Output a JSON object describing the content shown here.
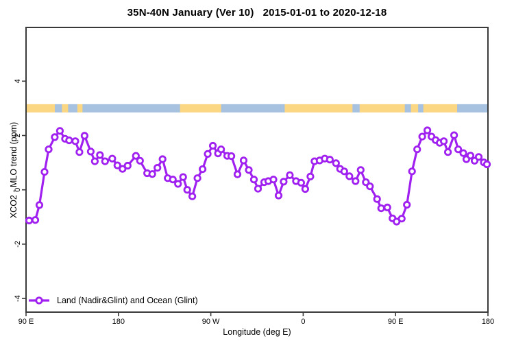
{
  "title": "35N-40N January (Ver 10)   2015-01-01 to 2020-12-18",
  "chart_data": {
    "type": "line",
    "title": "35N-40N January (Ver 10)   2015-01-01 to 2020-12-18",
    "xlabel": "Longitude (deg E)",
    "ylabel": "XCO2 - MLO trend (ppm)",
    "x_axis": {
      "domain_deg": [
        0,
        450
      ],
      "note_visible_ticks_wrap_longitude": "axis starts at 90E and wraps 450 degrees eastward",
      "ticks": [
        {
          "deg": 0,
          "label": "90 E"
        },
        {
          "deg": 90,
          "label": "180"
        },
        {
          "deg": 180,
          "label": "90 W"
        },
        {
          "deg": 270,
          "label": "0"
        },
        {
          "deg": 360,
          "label": "90 E"
        },
        {
          "deg": 450,
          "label": "180"
        }
      ]
    },
    "y_axis": {
      "ylim": [
        -4.5,
        6.0
      ],
      "ticks": [
        {
          "value": 4,
          "label": "4"
        },
        {
          "value": 2,
          "label": "2"
        },
        {
          "value": 0,
          "label": "0"
        },
        {
          "value": -2,
          "label": "-2"
        },
        {
          "value": -4,
          "label": "-4"
        }
      ]
    },
    "grid": false,
    "legend": {
      "position": "bottom-left",
      "label": "Land (Nadir&Glint) and Ocean (Glint)"
    },
    "colors": {
      "series": "#A020F0",
      "marker_fill": "#FFFFFF",
      "land_band": "#FBD683",
      "ocean_band": "#A7C1E0",
      "axis": "#3a3a3a"
    },
    "surface_band": {
      "center_ppm": 3.0,
      "land_color": "#FBD683",
      "ocean_color": "#A7C1E0",
      "segments": [
        {
          "from_deg": 0,
          "to_deg": 28,
          "type": "land"
        },
        {
          "from_deg": 28,
          "to_deg": 35,
          "type": "ocean"
        },
        {
          "from_deg": 35,
          "to_deg": 41,
          "type": "land"
        },
        {
          "from_deg": 41,
          "to_deg": 50,
          "type": "ocean"
        },
        {
          "from_deg": 50,
          "to_deg": 55,
          "type": "land"
        },
        {
          "from_deg": 55,
          "to_deg": 150,
          "type": "ocean"
        },
        {
          "from_deg": 150,
          "to_deg": 190,
          "type": "land"
        },
        {
          "from_deg": 190,
          "to_deg": 252,
          "type": "ocean"
        },
        {
          "from_deg": 252,
          "to_deg": 318,
          "type": "land"
        },
        {
          "from_deg": 318,
          "to_deg": 325,
          "type": "ocean"
        },
        {
          "from_deg": 325,
          "to_deg": 369,
          "type": "land"
        },
        {
          "from_deg": 369,
          "to_deg": 375,
          "type": "ocean"
        },
        {
          "from_deg": 375,
          "to_deg": 382,
          "type": "land"
        },
        {
          "from_deg": 382,
          "to_deg": 387,
          "type": "ocean"
        },
        {
          "from_deg": 387,
          "to_deg": 420,
          "type": "land"
        },
        {
          "from_deg": 420,
          "to_deg": 450,
          "type": "ocean"
        }
      ]
    },
    "series": [
      {
        "name": "Land (Nadir&Glint) and Ocean (Glint)",
        "color": "#A020F0",
        "points": [
          [
            3,
            -1.13
          ],
          [
            9,
            -1.11
          ],
          [
            13,
            -0.56
          ],
          [
            18,
            0.66
          ],
          [
            22,
            1.49
          ],
          [
            28,
            1.94
          ],
          [
            33,
            2.17
          ],
          [
            38,
            1.88
          ],
          [
            42,
            1.82
          ],
          [
            48,
            1.79
          ],
          [
            52,
            1.39
          ],
          [
            57,
            1.99
          ],
          [
            63,
            1.41
          ],
          [
            67,
            1.05
          ],
          [
            72,
            1.28
          ],
          [
            77,
            1.05
          ],
          [
            84,
            1.15
          ],
          [
            89,
            0.9
          ],
          [
            94,
            0.77
          ],
          [
            99,
            0.89
          ],
          [
            107,
            1.25
          ],
          [
            111,
            1.07
          ],
          [
            118,
            0.61
          ],
          [
            123,
            0.58
          ],
          [
            128,
            0.81
          ],
          [
            133,
            1.13
          ],
          [
            138,
            0.43
          ],
          [
            143,
            0.38
          ],
          [
            148,
            0.22
          ],
          [
            153,
            0.47
          ],
          [
            157,
            0.0
          ],
          [
            162,
            -0.24
          ],
          [
            167,
            0.43
          ],
          [
            172,
            0.76
          ],
          [
            177,
            1.32
          ],
          [
            182,
            1.62
          ],
          [
            187,
            1.34
          ],
          [
            190,
            1.49
          ],
          [
            196,
            1.25
          ],
          [
            200,
            1.24
          ],
          [
            206,
            0.57
          ],
          [
            212,
            1.08
          ],
          [
            217,
            0.73
          ],
          [
            222,
            0.38
          ],
          [
            226,
            0.04
          ],
          [
            232,
            0.28
          ],
          [
            236,
            0.32
          ],
          [
            241,
            0.38
          ],
          [
            246,
            -0.21
          ],
          [
            251,
            0.3
          ],
          [
            257,
            0.54
          ],
          [
            263,
            0.32
          ],
          [
            268,
            0.26
          ],
          [
            272,
            0.03
          ],
          [
            277,
            0.49
          ],
          [
            281,
            1.05
          ],
          [
            286,
            1.08
          ],
          [
            291,
            1.15
          ],
          [
            296,
            1.11
          ],
          [
            302,
            0.98
          ],
          [
            306,
            0.77
          ],
          [
            310,
            0.68
          ],
          [
            315,
            0.5
          ],
          [
            321,
            0.32
          ],
          [
            326,
            0.73
          ],
          [
            331,
            0.28
          ],
          [
            335,
            0.13
          ],
          [
            342,
            -0.34
          ],
          [
            346,
            -0.68
          ],
          [
            352,
            -0.65
          ],
          [
            357,
            -1.05
          ],
          [
            361,
            -1.17
          ],
          [
            366,
            -1.06
          ],
          [
            371,
            -0.55
          ],
          [
            376,
            0.68
          ],
          [
            381,
            1.49
          ],
          [
            386,
            1.96
          ],
          [
            391,
            2.19
          ],
          [
            395,
            1.96
          ],
          [
            399,
            1.83
          ],
          [
            403,
            1.73
          ],
          [
            407,
            1.79
          ],
          [
            411,
            1.39
          ],
          [
            417,
            2.01
          ],
          [
            421,
            1.49
          ],
          [
            426,
            1.35
          ],
          [
            429,
            1.13
          ],
          [
            433,
            1.26
          ],
          [
            437,
            1.07
          ],
          [
            441,
            1.21
          ],
          [
            446,
            1.01
          ],
          [
            449,
            0.94
          ]
        ]
      }
    ]
  }
}
